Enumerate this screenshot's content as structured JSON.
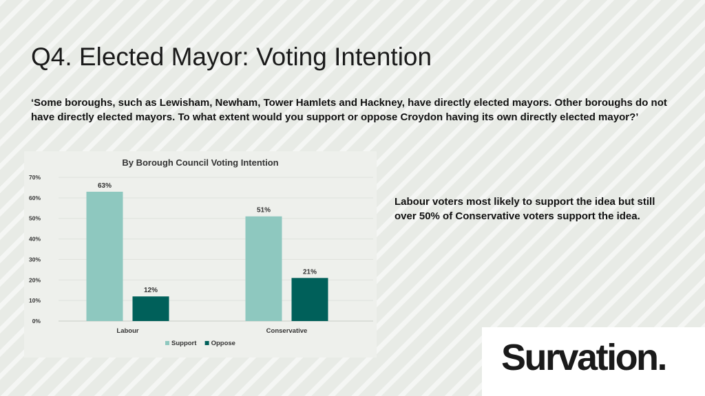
{
  "slide": {
    "title": "Q4. Elected Mayor: Voting Intention",
    "question": "‘Some boroughs, such as Lewisham, Newham, Tower Hamlets and Hackney, have directly elected mayors. Other boroughs do not have directly elected mayors. To what extent would you support or oppose Croydon having its own directly elected mayor?’",
    "callout": "Labour voters most likely to support the idea but still over 50% of Conservative voters support the idea.",
    "logo_text": "Survation."
  },
  "chart_data": {
    "type": "bar",
    "title": "By Borough Council Voting Intention",
    "categories": [
      "Labour",
      "Conservative"
    ],
    "series": [
      {
        "name": "Support",
        "values": [
          63,
          51
        ],
        "labels": [
          "63%",
          "51%"
        ],
        "color": "#8ec8bf"
      },
      {
        "name": "Oppose",
        "values": [
          12,
          21
        ],
        "labels": [
          "12%",
          "21%"
        ],
        "color": "#00605a"
      }
    ],
    "ylim": [
      0,
      70
    ],
    "yticks": [
      0,
      10,
      20,
      30,
      40,
      50,
      60,
      70
    ],
    "ytick_labels": [
      "0%",
      "10%",
      "20%",
      "30%",
      "40%",
      "50%",
      "60%",
      "70%"
    ],
    "grid": true,
    "legend": "bottom"
  }
}
